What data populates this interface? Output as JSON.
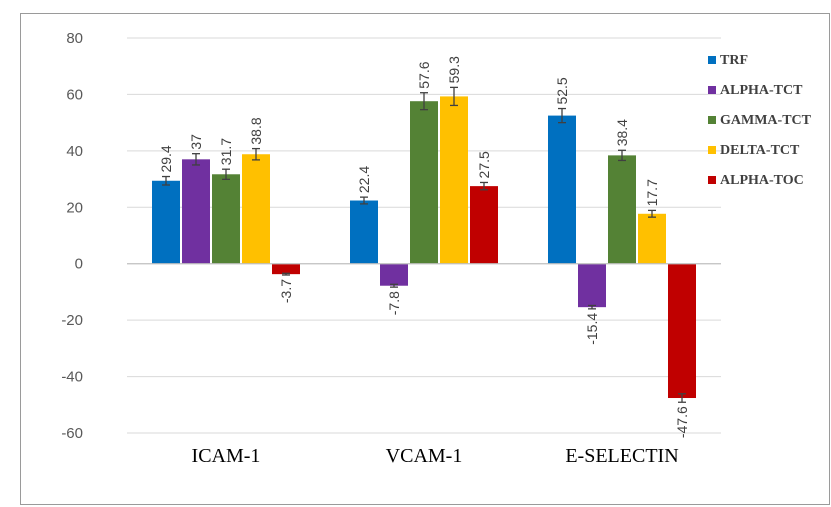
{
  "chart_data": {
    "type": "bar",
    "title": "",
    "xlabel": "",
    "ylabel": "",
    "ylim": [
      -60,
      80
    ],
    "yticks": [
      -60,
      -40,
      -20,
      0,
      20,
      40,
      60,
      80
    ],
    "grid": true,
    "legend_position": "right",
    "categories": [
      "ICAM-1",
      "VCAM-1",
      "E-SELECTIN"
    ],
    "series": [
      {
        "name": "TRF",
        "color": "#0070C0",
        "values": [
          29.4,
          22.4,
          52.5
        ],
        "errors": [
          1.5,
          1.2,
          2.5
        ]
      },
      {
        "name": "ALPHA-TCT",
        "color": "#7030A0",
        "values": [
          37,
          -7.8,
          -15.4
        ],
        "errors": [
          2.0,
          0.5,
          0.6
        ]
      },
      {
        "name": "GAMMA-TCT",
        "color": "#548235",
        "values": [
          31.7,
          57.6,
          38.4
        ],
        "errors": [
          1.8,
          3.0,
          1.8
        ]
      },
      {
        "name": "DELTA-TCT",
        "color": "#FFC000",
        "values": [
          38.8,
          59.3,
          17.7
        ],
        "errors": [
          2.0,
          3.2,
          1.2
        ]
      },
      {
        "name": "ALPHA-TOC",
        "color": "#C00000",
        "values": [
          -3.7,
          27.5,
          -47.6
        ],
        "errors": [
          0.3,
          1.3,
          1.5
        ]
      }
    ],
    "data_labels": [
      [
        "29.4",
        "22.4",
        "52.5"
      ],
      [
        "37",
        "-7.8",
        "-15.4"
      ],
      [
        "31.7",
        "57.6",
        "38.4"
      ],
      [
        "38.8",
        "59.3",
        "17.7"
      ],
      [
        "-3.7",
        "27.5",
        "-47.6"
      ]
    ],
    "tick_labels": [
      "-60",
      "-40",
      "-20",
      "0",
      "20",
      "40",
      "60",
      "80"
    ]
  }
}
